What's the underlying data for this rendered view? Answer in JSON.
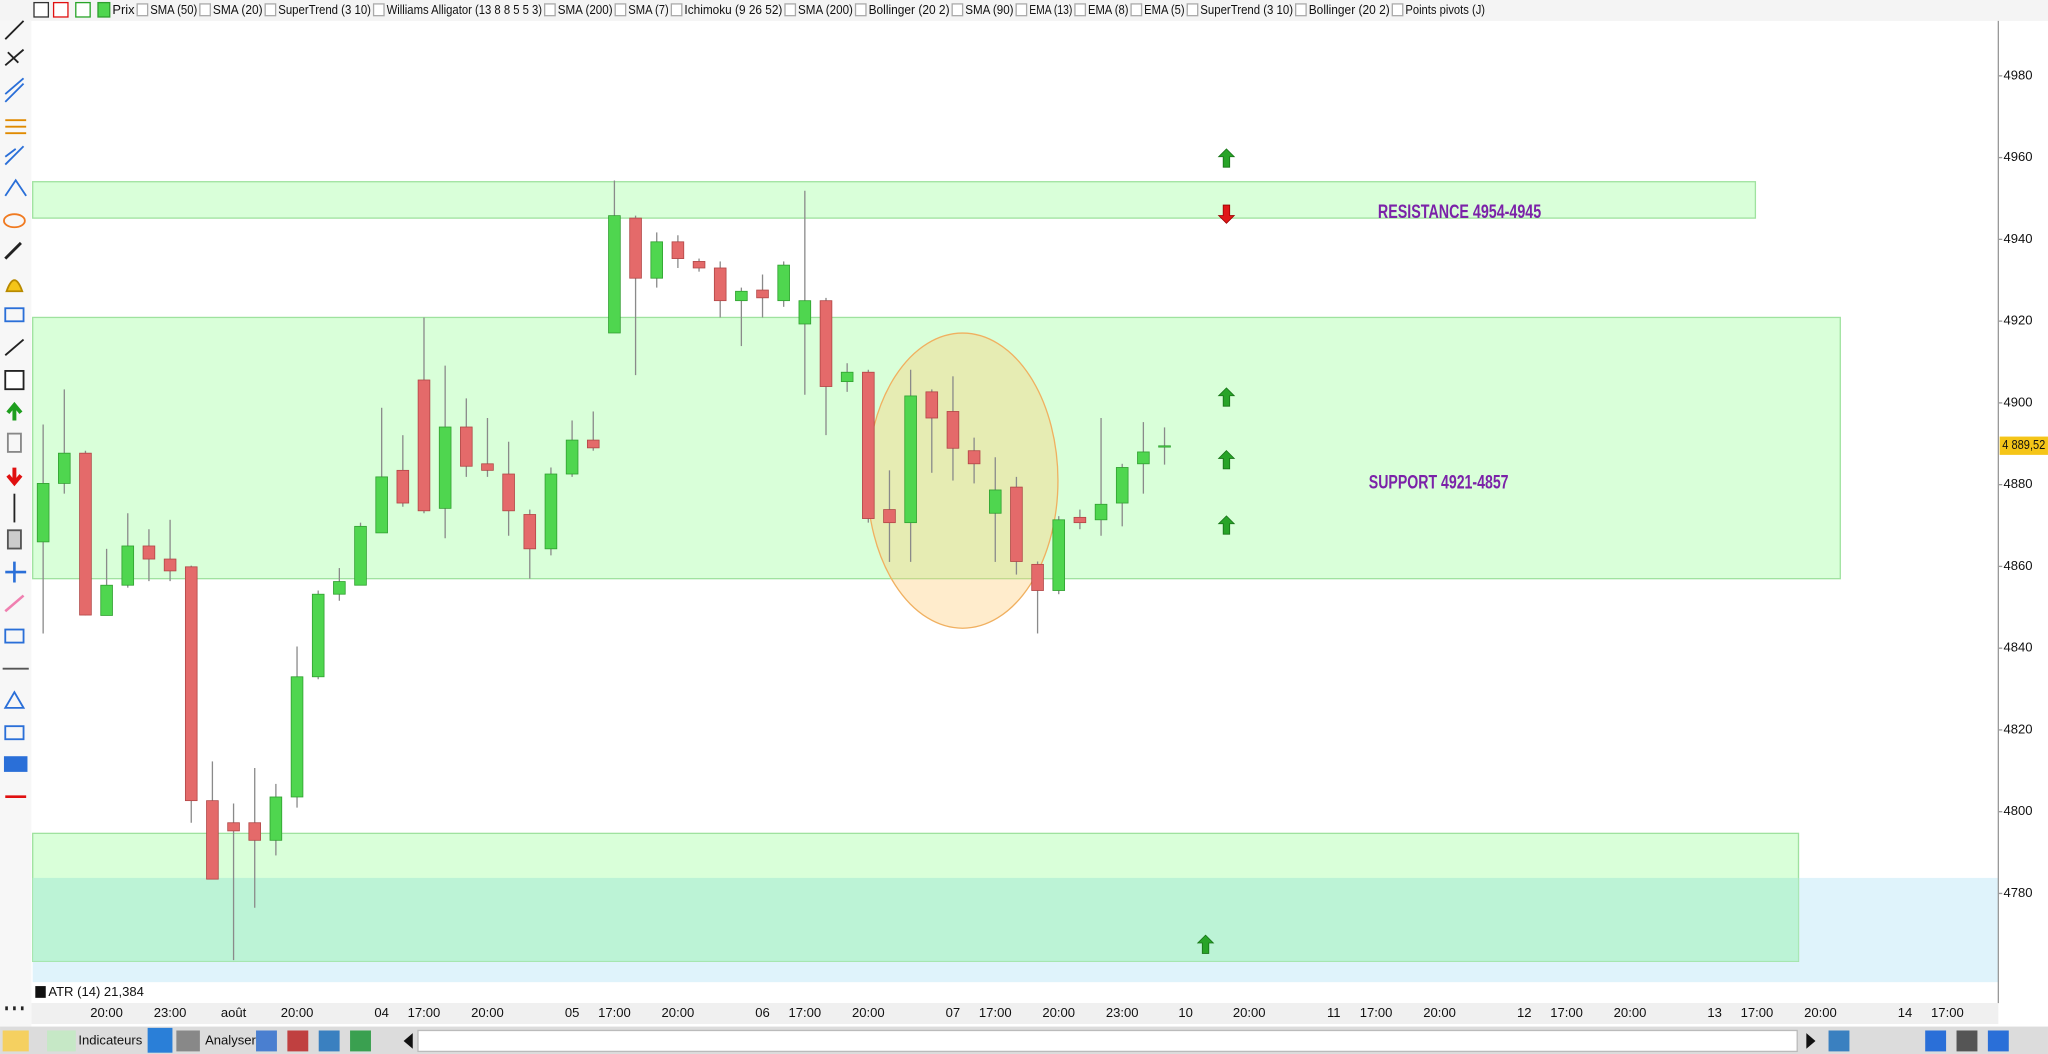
{
  "chart_data": {
    "type": "candlestick",
    "indicators": [
      "Prix",
      "SMA (50)",
      "SMA (20)",
      "SuperTrend (3 10)",
      "Williams Alligator (13 8 8 5 5 3)",
      "SMA (200)",
      "SMA (7)",
      "Ichimoku (9 26 52)",
      "SMA (200)",
      "Bollinger (20 2)",
      "SMA (90)",
      "EMA (13)",
      "EMA (8)",
      "EMA (5)",
      "SuperTrend (3 10)",
      "Bollinger (20 2)",
      "Points pivots (J)"
    ],
    "categories": [
      null,
      null,
      null,
      "20:00",
      null,
      null,
      "23:00",
      null,
      null,
      "août",
      null,
      null,
      "20:00",
      null,
      null,
      null,
      "04",
      null,
      "17:00",
      null,
      null,
      "20:00",
      null,
      null,
      null,
      "05",
      null,
      "17:00",
      null,
      null,
      "20:00",
      null,
      null,
      null,
      "06",
      null,
      "17:00",
      null,
      null,
      "20:00",
      null,
      null,
      null,
      "07",
      null,
      "17:00",
      null,
      null,
      "20:00",
      null,
      null,
      "23:00",
      null,
      null,
      "10",
      null,
      null,
      "20:00",
      null,
      null,
      null,
      "11",
      null,
      "17:00",
      null,
      null,
      "20:00",
      null,
      null,
      null,
      "12",
      null,
      "17:00",
      null,
      null,
      "20:00",
      null,
      null,
      null,
      "13",
      null,
      "17:00",
      null,
      null,
      "20:00",
      null,
      null,
      null,
      "14",
      null,
      "17:00",
      null,
      null
    ],
    "open": [
      4866,
      4880.3,
      4887.7,
      4848,
      4855.4,
      4865,
      4861.8,
      4859.9,
      4802.7,
      4797.3,
      4797.3,
      4793,
      4803.6,
      4833,
      4853.2,
      4855.4,
      4868.2,
      4883.5,
      4905.6,
      4874.2,
      4894.1,
      4885.1,
      4882.6,
      4872.7,
      4864.3,
      4882.6,
      4890.9,
      4917.1,
      4945.2,
      4930.5,
      4939.4,
      4934.6,
      4933,
      4925,
      4927.6,
      4925,
      4919.3,
      4925,
      4905.2,
      4907.5,
      4873.9,
      4870.7,
      4902.7,
      4897.9,
      4888.3,
      4873,
      4879.4,
      4860.5,
      4854.1,
      4872,
      4871.4,
      4875.5,
      4885.1,
      4889.5,
      null,
      null,
      null,
      null,
      null,
      null,
      null,
      null,
      null,
      null,
      null,
      null,
      null,
      null,
      null,
      null,
      null,
      null,
      null,
      null,
      null,
      null,
      null,
      null,
      null,
      null,
      null,
      null,
      null,
      null,
      null,
      null,
      null,
      null,
      null,
      null,
      null,
      null,
      null
    ],
    "high": [
      4894.7,
      4903.3,
      4888.3,
      4864.3,
      4873,
      4869.1,
      4871.4,
      4860.2,
      4812.3,
      4802,
      4810.7,
      4806.8,
      4840.4,
      4854.1,
      4859.6,
      4870.7,
      4898.8,
      4892.1,
      4920.9,
      4909.1,
      4901.1,
      4896.3,
      4890.5,
      4873.9,
      4884.2,
      4895.7,
      4897.9,
      4954.4,
      4945.8,
      4941.7,
      4941,
      4935.3,
      4934.6,
      4928.2,
      4931.4,
      4934.6,
      4951.9,
      4925.7,
      4909.7,
      4908.1,
      4883.5,
      4908.1,
      4903.3,
      4906.5,
      4891.5,
      4886.7,
      4881.9,
      4861.2,
      4872.3,
      4873.9,
      4896.3,
      4885.1,
      4895.3,
      4894,
      null,
      null,
      null,
      null,
      null,
      null,
      null,
      null,
      null,
      null,
      null,
      null,
      null,
      null,
      null,
      null,
      null,
      null,
      null,
      null,
      null,
      null,
      null,
      null,
      null,
      null,
      null,
      null,
      null,
      null,
      null,
      null,
      null,
      null,
      null,
      null,
      null,
      null,
      null
    ],
    "low": [
      4843.6,
      4877.8,
      4848,
      4848,
      4854.8,
      4856.4,
      4856.4,
      4797.3,
      4783.5,
      4763.7,
      4776.5,
      4789.3,
      4801,
      4832.4,
      4851.6,
      4855.4,
      4868.2,
      4874.6,
      4873,
      4866.9,
      4881.9,
      4881.9,
      4867.5,
      4857,
      4862.7,
      4881.9,
      4888.3,
      4917.1,
      4906.8,
      4928.2,
      4933,
      4932.1,
      4920.9,
      4913.9,
      4920.9,
      4923.5,
      4902,
      4892.1,
      4902.7,
      4870.7,
      4861.1,
      4861.1,
      4882.9,
      4881,
      4880.3,
      4861.1,
      4858,
      4843.6,
      4853.2,
      4869.1,
      4867.5,
      4869.8,
      4877.8,
      4884.9,
      null,
      null,
      null,
      null,
      null,
      null,
      null,
      null,
      null,
      null,
      null,
      null,
      null,
      null,
      null,
      null,
      null,
      null,
      null,
      null,
      null,
      null,
      null,
      null,
      null,
      null,
      null,
      null,
      null,
      null,
      null,
      null,
      null,
      null,
      null,
      null,
      null,
      null,
      null
    ],
    "close": [
      4880.3,
      4887.7,
      4848.1,
      4855.4,
      4865,
      4861.8,
      4858.9,
      4802.7,
      4783.5,
      4795.3,
      4793,
      4803.6,
      4833,
      4853.2,
      4856.3,
      4869.8,
      4881.9,
      4875.5,
      4873.6,
      4894.1,
      4884.5,
      4883.5,
      4873.6,
      4864.3,
      4882.6,
      4890.9,
      4889,
      4945.8,
      4930.5,
      4939.4,
      4935.3,
      4933,
      4925,
      4927.3,
      4925.7,
      4933.7,
      4925,
      4904,
      4907.5,
      4871.7,
      4870.7,
      4901.7,
      4896.3,
      4888.9,
      4885.1,
      4878.7,
      4861.2,
      4854.1,
      4871.4,
      4870.7,
      4875.2,
      4884.2,
      4888,
      4889.5,
      null,
      null,
      null,
      null,
      null,
      null,
      null,
      null,
      null,
      null,
      null,
      null,
      null,
      null,
      null,
      null,
      null,
      null,
      null,
      null,
      null,
      null,
      null,
      null,
      null,
      null,
      null,
      null,
      null,
      null,
      null,
      null,
      null,
      null,
      null,
      null,
      null,
      null,
      null
    ],
    "up_color": "#4fd64f",
    "down_color": "#e46a6a",
    "ylim": [
      4758.3,
      4992.8
    ],
    "yticks": [
      4780,
      4800,
      4820,
      4840,
      4860,
      4880,
      4900,
      4920,
      4940,
      4960,
      4980
    ],
    "grid": false,
    "last_price": {
      "value": 4889.52,
      "label": "4 889,52"
    },
    "zones": [
      {
        "from": 4945.2,
        "to": 4954.1,
        "color": "#ccffcc"
      },
      {
        "from": 4857,
        "to": 4920.9,
        "color": "#ccffcc"
      },
      {
        "from": 4763.4,
        "to": 4794.7,
        "color": "#ccffcc"
      }
    ],
    "lower_band_top": 4783.8,
    "annotations": [
      "RESISTANCE 4954-4945",
      "SUPPORT 4921-4857"
    ],
    "atr_label": "ATR (14) 21,384",
    "toolbar": [
      "Indicateurs",
      "Analyser"
    ]
  }
}
